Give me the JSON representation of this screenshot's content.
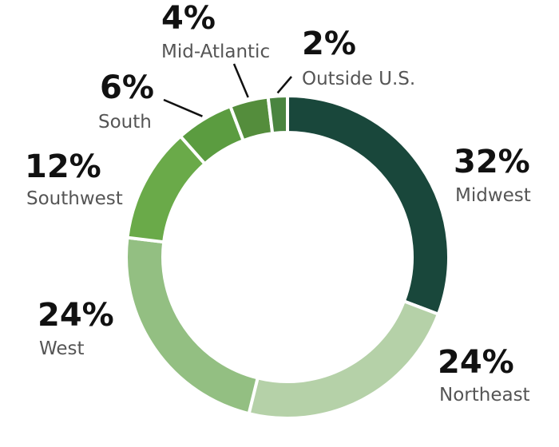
{
  "chart_data": {
    "type": "pie",
    "title": "",
    "legend": "none",
    "categories": [
      "Midwest",
      "Northeast",
      "West",
      "Southwest",
      "South",
      "Mid-Atlantic",
      "Outside U.S."
    ],
    "values": [
      32,
      24,
      24,
      12,
      6,
      4,
      2
    ],
    "value_labels": [
      "32%",
      "24%",
      "24%",
      "12%",
      "6%",
      "4%",
      "2%"
    ],
    "colors": [
      "#19473b",
      "#b5d1a8",
      "#93bf82",
      "#6aaa49",
      "#5b9c40",
      "#548d3c",
      "#4a8540"
    ]
  }
}
